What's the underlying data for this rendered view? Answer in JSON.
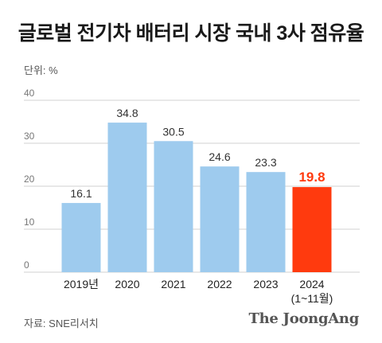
{
  "title": "글로벌 전기차 배터리 시장 국내 3사 점유율",
  "unit_label": "단위: %",
  "source": "자료: SNE리서치",
  "logo": "The JoongAng",
  "colors": {
    "bar": "#9ecbee",
    "highlight_bar": "#ff3a0e",
    "highlight_text": "#ff3a0e",
    "grid": "#d0d0d0",
    "axis_text": "#777777"
  },
  "chart_data": {
    "type": "bar",
    "title": "글로벌 전기차 배터리 시장 국내 3사 점유율",
    "ylabel": "단위: %",
    "ylim": [
      0,
      40
    ],
    "yticks": [
      0,
      10,
      20,
      30,
      40
    ],
    "grid": true,
    "categories": [
      "2019년",
      "2020",
      "2021",
      "2022",
      "2023",
      "2024"
    ],
    "category_sublabels": [
      "",
      "",
      "",
      "",
      "",
      "(1~11월)"
    ],
    "values": [
      16.1,
      34.8,
      30.5,
      24.6,
      23.3,
      19.8
    ],
    "value_labels": [
      "16.1",
      "34.8",
      "30.5",
      "24.6",
      "23.3",
      "19.8"
    ],
    "highlight_index": 5
  }
}
